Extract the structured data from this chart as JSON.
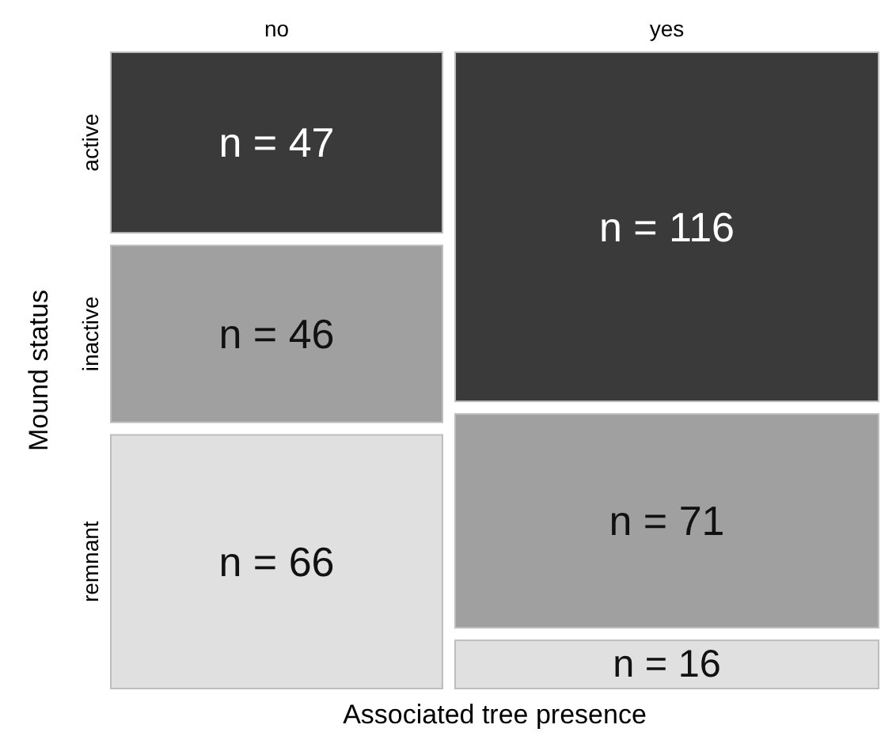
{
  "chart_data": {
    "type": "other",
    "xlabel": "Associated tree presence",
    "ylabel": "Mound status",
    "categories": [
      "no",
      "yes"
    ],
    "series": [
      {
        "name": "active",
        "color": "#3a3a3a",
        "values": [
          47,
          116
        ],
        "value_labels": [
          "n = 47",
          "n = 116"
        ]
      },
      {
        "name": "inactive",
        "color": "#a0a0a0",
        "values": [
          46,
          71
        ],
        "value_labels": [
          "n = 46",
          "n = 71"
        ]
      },
      {
        "name": "remnant",
        "color": "#e0e0e0",
        "values": [
          66,
          16
        ],
        "value_labels": [
          "n = 66",
          "n = 16"
        ]
      }
    ]
  }
}
